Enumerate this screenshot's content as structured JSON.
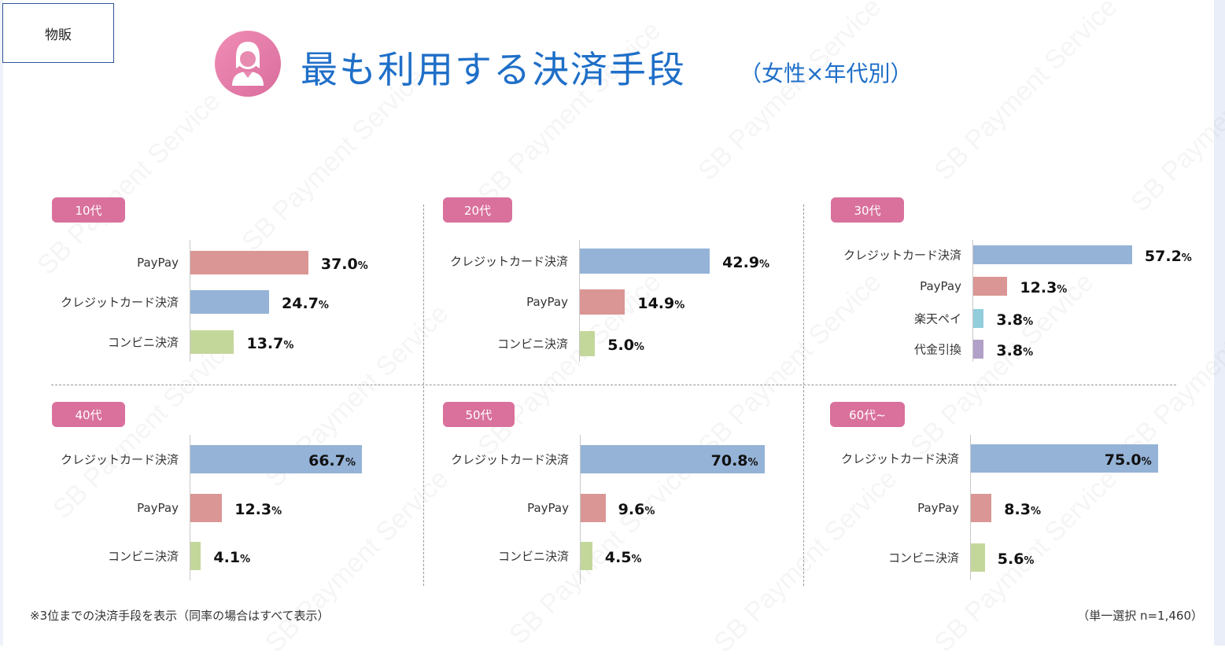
{
  "tag": "物販",
  "title": "最も利用する決済手段",
  "subtitle": "（女性×年代別）",
  "watermark": "SB Payment Service",
  "colors": {
    "クレジットカード決済": "#95b3d7",
    "PayPay": "#da9694",
    "コンビニ決済": "#c4d79b",
    "楽天ペイ": "#92cddc",
    "代金引換": "#b1a0c7",
    "badge": "#d9719c",
    "title": "#1f6fc8"
  },
  "chart_data": [
    {
      "type": "bar",
      "orientation": "horizontal",
      "title": "10代",
      "categories": [
        "PayPay",
        "クレジットカード決済",
        "コンビニ決済"
      ],
      "values": [
        37.0,
        24.7,
        13.7
      ],
      "unit": "%"
    },
    {
      "type": "bar",
      "orientation": "horizontal",
      "title": "20代",
      "categories": [
        "クレジットカード決済",
        "PayPay",
        "コンビニ決済"
      ],
      "values": [
        42.9,
        14.9,
        5.0
      ],
      "unit": "%"
    },
    {
      "type": "bar",
      "orientation": "horizontal",
      "title": "30代",
      "categories": [
        "クレジットカード決済",
        "PayPay",
        "楽天ペイ",
        "代金引換"
      ],
      "values": [
        57.2,
        12.3,
        3.8,
        3.8
      ],
      "unit": "%"
    },
    {
      "type": "bar",
      "orientation": "horizontal",
      "title": "40代",
      "categories": [
        "クレジットカード決済",
        "PayPay",
        "コンビニ決済"
      ],
      "values": [
        66.7,
        12.3,
        4.1
      ],
      "unit": "%"
    },
    {
      "type": "bar",
      "orientation": "horizontal",
      "title": "50代",
      "categories": [
        "クレジットカード決済",
        "PayPay",
        "コンビニ決済"
      ],
      "values": [
        70.8,
        9.6,
        4.5
      ],
      "unit": "%"
    },
    {
      "type": "bar",
      "orientation": "horizontal",
      "title": "60代~",
      "categories": [
        "クレジットカード決済",
        "PayPay",
        "コンビニ決済"
      ],
      "values": [
        75.0,
        8.3,
        5.6
      ],
      "unit": "%"
    }
  ],
  "footnote": "※3位までの決済手段を表示（同率の場合はすべて表示）",
  "sample": "（単一選択 n=1,460）"
}
